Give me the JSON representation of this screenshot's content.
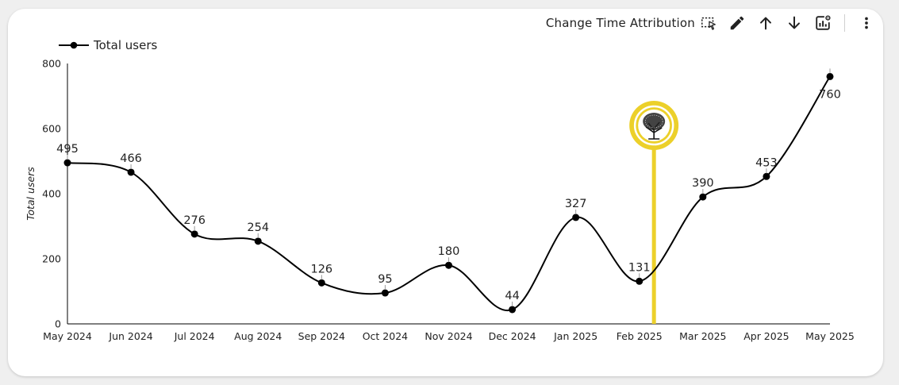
{
  "toolbar": {
    "change_time_attribution_label": "Change Time Attribution",
    "icons": [
      "select-region-icon",
      "edit-icon",
      "arrow-up-icon",
      "arrow-down-icon",
      "chart-settings-icon",
      "more-vert-icon"
    ]
  },
  "legend": {
    "label": "Total users"
  },
  "chart_data": {
    "type": "line",
    "smooth": true,
    "ylabel": "Total users",
    "ylim": [
      0,
      800
    ],
    "yticks": [
      0,
      200,
      400,
      600,
      800
    ],
    "categories": [
      "May 2024",
      "Jun 2024",
      "Jul 2024",
      "Aug 2024",
      "Sep 2024",
      "Oct 2024",
      "Nov 2024",
      "Dec 2024",
      "Jan 2025",
      "Feb 2025",
      "Mar 2025",
      "Apr 2025",
      "May 2025"
    ],
    "series": [
      {
        "name": "Total users",
        "values": [
          495,
          466,
          276,
          254,
          126,
          95,
          180,
          44,
          327,
          131,
          390,
          453,
          760
        ]
      }
    ],
    "data_labels": [
      "495",
      "466",
      "276",
      "254",
      "126",
      "95",
      "180",
      "44",
      "327",
      "131",
      "390",
      "453",
      "760"
    ],
    "annotation": {
      "type": "vertical-marker",
      "x": 9.23,
      "color": "#ecd02a",
      "icon": "tree-logo-icon"
    },
    "line_color": "#000000"
  }
}
